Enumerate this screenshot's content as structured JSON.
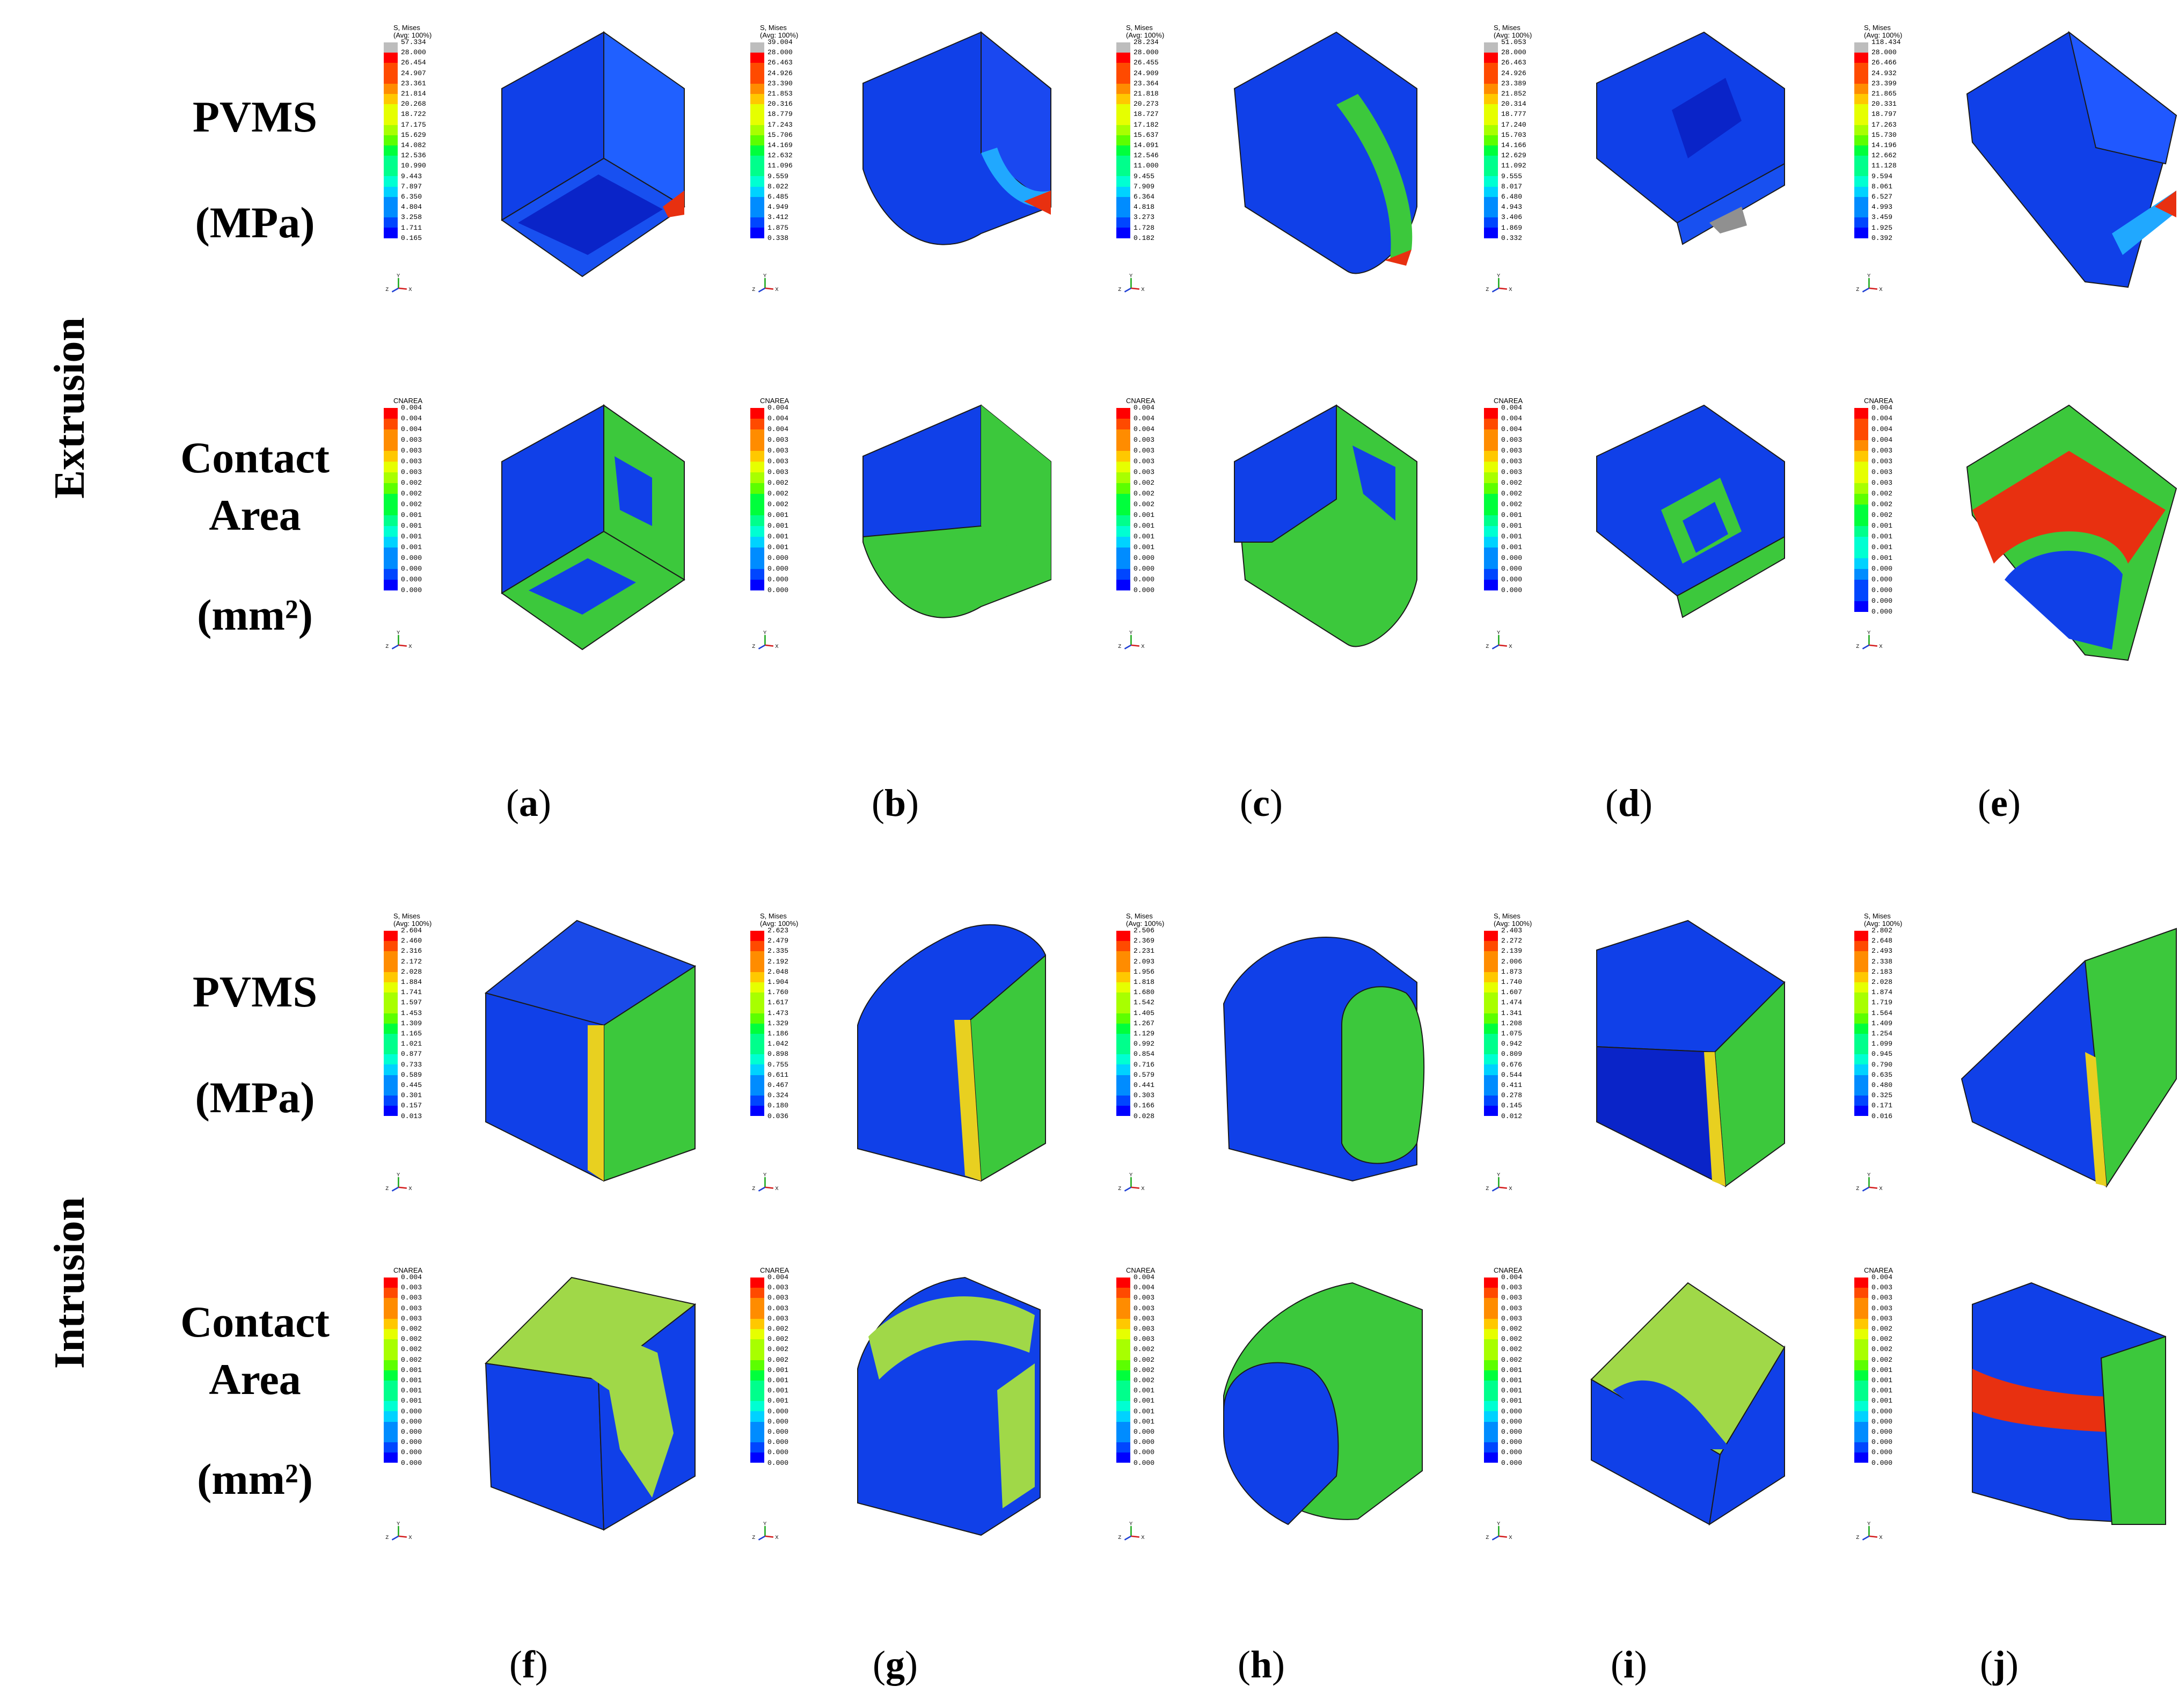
{
  "groups": [
    {
      "label": "Extrusion"
    },
    {
      "label": "Intrusion"
    }
  ],
  "row_labels": {
    "pvms": {
      "line1": "PVMS",
      "unit": "(MPa)"
    },
    "contact": {
      "line1": "Contact",
      "line2": "Area",
      "unit": "(mm²)"
    }
  },
  "captions": {
    "extrusion": [
      {
        "open": "(",
        "letter": "a",
        "close": ")"
      },
      {
        "open": "(",
        "letter": "b",
        "close": ")"
      },
      {
        "open": "(",
        "letter": "c",
        "close": ")"
      },
      {
        "open": "(",
        "letter": "d",
        "close": ")"
      },
      {
        "open": "(",
        "letter": "e",
        "close": ")"
      }
    ],
    "intrusion": [
      {
        "open": "(",
        "letter": "f",
        "close": ")"
      },
      {
        "open": "(",
        "letter": "g",
        "close": ")"
      },
      {
        "open": "(",
        "letter": "h",
        "close": ")"
      },
      {
        "open": "(",
        "letter": "i",
        "close": ")"
      },
      {
        "open": "(",
        "letter": "j",
        "close": ")"
      }
    ]
  },
  "legend_titles": {
    "mises": {
      "line1": "S, Mises",
      "line2": "(Avg: 100%)"
    },
    "cnarea": {
      "line1": "CNAREA",
      "line2": ""
    }
  },
  "axis_triad": {
    "y": "Y",
    "z": "Z",
    "x": "X"
  },
  "legend_colors": [
    "#bdbdbd",
    "#ff0000",
    "#ff4a00",
    "#ff8c00",
    "#ffc800",
    "#e6ff00",
    "#a8ff00",
    "#5cff00",
    "#00ff3c",
    "#00ff8c",
    "#00ffd2",
    "#00d2ff",
    "#008cff",
    "#0046ff",
    "#0000ff"
  ],
  "cnarea_colors": [
    "#ff0000",
    "#ff4a00",
    "#ff8c00",
    "#ffc800",
    "#e6ff00",
    "#a8ff00",
    "#5cff00",
    "#00ff3c",
    "#00ff8c",
    "#00ffd2",
    "#00d2ff",
    "#008cff",
    "#0046ff",
    "#0000ff"
  ],
  "extrusion_pvms_legends": [
    [
      "57.334",
      "28.000",
      "26.454",
      "24.907",
      "23.361",
      "21.814",
      "20.268",
      "18.722",
      "17.175",
      "15.629",
      "14.082",
      "12.536",
      "10.990",
      "9.443",
      "7.897",
      "6.350",
      "4.804",
      "3.258",
      "1.711",
      "0.165"
    ],
    [
      "39.004",
      "28.000",
      "26.463",
      "24.926",
      "23.390",
      "21.853",
      "20.316",
      "18.779",
      "17.243",
      "15.706",
      "14.169",
      "12.632",
      "11.096",
      "9.559",
      "8.022",
      "6.485",
      "4.949",
      "3.412",
      "1.875",
      "0.338"
    ],
    [
      "28.234",
      "28.000",
      "26.455",
      "24.909",
      "23.364",
      "21.818",
      "20.273",
      "18.727",
      "17.182",
      "15.637",
      "14.091",
      "12.546",
      "11.000",
      "9.455",
      "7.909",
      "6.364",
      "4.818",
      "3.273",
      "1.728",
      "0.182"
    ],
    [
      "51.053",
      "28.000",
      "26.463",
      "24.926",
      "23.389",
      "21.852",
      "20.314",
      "18.777",
      "17.240",
      "15.703",
      "14.166",
      "12.629",
      "11.092",
      "9.555",
      "8.017",
      "6.480",
      "4.943",
      "3.406",
      "1.869",
      "0.332"
    ],
    [
      "118.434",
      "28.000",
      "26.466",
      "24.932",
      "23.399",
      "21.865",
      "20.331",
      "18.797",
      "17.263",
      "15.730",
      "14.196",
      "12.662",
      "11.128",
      "9.594",
      "8.061",
      "6.527",
      "4.993",
      "3.459",
      "1.925",
      "0.392"
    ]
  ],
  "extrusion_contact_legends": [
    [
      "0.004",
      "0.004",
      "0.004",
      "0.003",
      "0.003",
      "0.003",
      "0.003",
      "0.002",
      "0.002",
      "0.002",
      "0.001",
      "0.001",
      "0.001",
      "0.001",
      "0.000",
      "0.000",
      "0.000",
      "0.000"
    ],
    [
      "0.004",
      "0.004",
      "0.004",
      "0.003",
      "0.003",
      "0.003",
      "0.003",
      "0.002",
      "0.002",
      "0.002",
      "0.001",
      "0.001",
      "0.001",
      "0.001",
      "0.000",
      "0.000",
      "0.000",
      "0.000"
    ],
    [
      "0.004",
      "0.004",
      "0.004",
      "0.003",
      "0.003",
      "0.003",
      "0.003",
      "0.002",
      "0.002",
      "0.002",
      "0.001",
      "0.001",
      "0.001",
      "0.001",
      "0.000",
      "0.000",
      "0.000",
      "0.000"
    ],
    [
      "0.004",
      "0.004",
      "0.004",
      "0.003",
      "0.003",
      "0.003",
      "0.003",
      "0.002",
      "0.002",
      "0.002",
      "0.001",
      "0.001",
      "0.001",
      "0.001",
      "0.000",
      "0.000",
      "0.000",
      "0.000"
    ],
    [
      "0.004",
      "0.004",
      "0.004",
      "0.004",
      "0.003",
      "0.003",
      "0.003",
      "0.003",
      "0.002",
      "0.002",
      "0.002",
      "0.001",
      "0.001",
      "0.001",
      "0.001",
      "0.000",
      "0.000",
      "0.000",
      "0.000",
      "0.000"
    ]
  ],
  "intrusion_pvms_legends": [
    [
      "2.604",
      "2.460",
      "2.316",
      "2.172",
      "2.028",
      "1.884",
      "1.741",
      "1.597",
      "1.453",
      "1.309",
      "1.165",
      "1.021",
      "0.877",
      "0.733",
      "0.589",
      "0.445",
      "0.301",
      "0.157",
      "0.013"
    ],
    [
      "2.623",
      "2.479",
      "2.335",
      "2.192",
      "2.048",
      "1.904",
      "1.760",
      "1.617",
      "1.473",
      "1.329",
      "1.186",
      "1.042",
      "0.898",
      "0.755",
      "0.611",
      "0.467",
      "0.324",
      "0.180",
      "0.036"
    ],
    [
      "2.506",
      "2.369",
      "2.231",
      "2.093",
      "1.956",
      "1.818",
      "1.680",
      "1.542",
      "1.405",
      "1.267",
      "1.129",
      "0.992",
      "0.854",
      "0.716",
      "0.579",
      "0.441",
      "0.303",
      "0.166",
      "0.028"
    ],
    [
      "2.403",
      "2.272",
      "2.139",
      "2.006",
      "1.873",
      "1.740",
      "1.607",
      "1.474",
      "1.341",
      "1.208",
      "1.075",
      "0.942",
      "0.809",
      "0.676",
      "0.544",
      "0.411",
      "0.278",
      "0.145",
      "0.012"
    ],
    [
      "2.802",
      "2.648",
      "2.493",
      "2.338",
      "2.183",
      "2.028",
      "1.874",
      "1.719",
      "1.564",
      "1.409",
      "1.254",
      "1.099",
      "0.945",
      "0.790",
      "0.635",
      "0.480",
      "0.325",
      "0.171",
      "0.016"
    ]
  ],
  "intrusion_contact_legends": [
    [
      "0.004",
      "0.003",
      "0.003",
      "0.003",
      "0.003",
      "0.002",
      "0.002",
      "0.002",
      "0.002",
      "0.001",
      "0.001",
      "0.001",
      "0.001",
      "0.000",
      "0.000",
      "0.000",
      "0.000",
      "0.000",
      "0.000"
    ],
    [
      "0.004",
      "0.003",
      "0.003",
      "0.003",
      "0.003",
      "0.002",
      "0.002",
      "0.002",
      "0.002",
      "0.001",
      "0.001",
      "0.001",
      "0.001",
      "0.000",
      "0.000",
      "0.000",
      "0.000",
      "0.000",
      "0.000"
    ],
    [
      "0.004",
      "0.004",
      "0.003",
      "0.003",
      "0.003",
      "0.003",
      "0.003",
      "0.002",
      "0.002",
      "0.002",
      "0.002",
      "0.001",
      "0.001",
      "0.001",
      "0.001",
      "0.000",
      "0.000",
      "0.000",
      "0.000"
    ],
    [
      "0.004",
      "0.003",
      "0.003",
      "0.003",
      "0.003",
      "0.002",
      "0.002",
      "0.002",
      "0.002",
      "0.001",
      "0.001",
      "0.001",
      "0.001",
      "0.000",
      "0.000",
      "0.000",
      "0.000",
      "0.000",
      "0.000"
    ],
    [
      "0.004",
      "0.003",
      "0.003",
      "0.003",
      "0.003",
      "0.002",
      "0.002",
      "0.002",
      "0.002",
      "0.001",
      "0.001",
      "0.001",
      "0.001",
      "0.000",
      "0.000",
      "0.000",
      "0.000",
      "0.000",
      "0.000"
    ]
  ]
}
